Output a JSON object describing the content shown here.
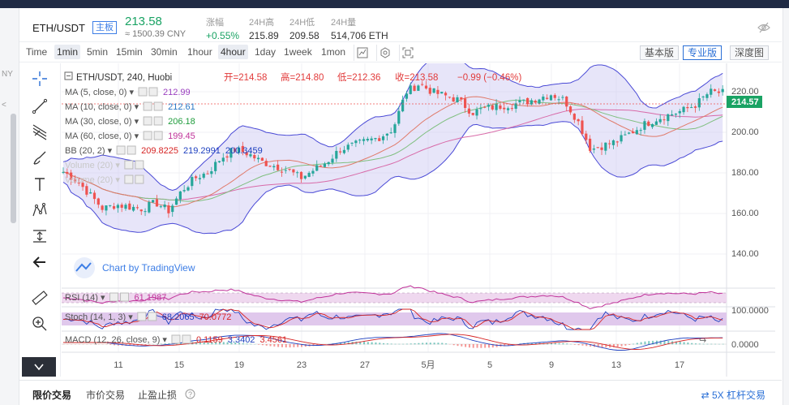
{
  "ticker": {
    "pair": "ETH/USDT",
    "board": "主板",
    "last_price": "213.58",
    "cny_price": "≈ 1500.39 CNY",
    "stats": [
      {
        "label": "涨幅",
        "value": "+0.55%",
        "up": true
      },
      {
        "label": "24H高",
        "value": "215.89",
        "up": false
      },
      {
        "label": "24H低",
        "value": "209.58",
        "up": false
      },
      {
        "label": "24H量",
        "value": "514,706 ETH",
        "up": false
      }
    ]
  },
  "left_fragments": [
    "NY",
    "<"
  ],
  "toolbar": {
    "timeframes": [
      "Time",
      "1min",
      "5min",
      "15min",
      "30min",
      "1hour",
      "4hour",
      "1day",
      "1week",
      "1mon"
    ],
    "active_timeframe": "4hour",
    "versions": [
      "基本版",
      "专业版",
      "深度图"
    ],
    "active_version": "专业版"
  },
  "chart_header": {
    "symbol": "ETH/USDT, 240, Huobi",
    "open_label": "开=214.58",
    "high_label": "高=214.80",
    "low_label": "低=212.36",
    "close_label": "收=213.58",
    "change": "−0.99 (−0.46%)"
  },
  "indicators": [
    {
      "name": "MA (5, close, 0)",
      "values": [
        "212.99"
      ],
      "colors": [
        "#9a3fbf"
      ]
    },
    {
      "name": "MA (10, close, 0)",
      "values": [
        "212.61"
      ],
      "colors": [
        "#2b78c5"
      ]
    },
    {
      "name": "MA (30, close, 0)",
      "values": [
        "206.18"
      ],
      "colors": [
        "#1f9c3c"
      ]
    },
    {
      "name": "MA (60, close, 0)",
      "values": [
        "199.45"
      ],
      "colors": [
        "#c0339a"
      ]
    },
    {
      "name": "BB (20, 2)",
      "values": [
        "209.8225",
        "219.2991",
        "200.3459"
      ],
      "colors": [
        "#d62424",
        "#1d3fbf",
        "#1d3fbf"
      ]
    },
    {
      "name": "Volume (20)",
      "values": [],
      "colors": [],
      "faded": true
    },
    {
      "name": "Volume (20)",
      "values": [],
      "colors": [],
      "faded": true
    }
  ],
  "watermark": "Chart by TradingView",
  "sub_panes": [
    {
      "name": "RSI (14)",
      "values": [
        "61.1987"
      ],
      "colors": [
        "#c0339a"
      ]
    },
    {
      "name": "Stoch (14, 1, 3)",
      "values": [
        "68.2065",
        "70.0772"
      ],
      "colors": [
        "#1d3fbf",
        "#d62424"
      ]
    },
    {
      "name": "MACD (12, 26, close, 9)",
      "values": [
        "0.1159",
        "3.3402",
        "3.4561"
      ],
      "colors": [
        "#d62424",
        "#1d3fbf",
        "#d62424"
      ]
    }
  ],
  "price_axis": [
    "220.00",
    "200.00",
    "180.00",
    "160.00",
    "140.00"
  ],
  "current_price_tag": "214.57",
  "sub_axis": [
    "100.0000",
    "0.0000"
  ],
  "time_axis": [
    "11",
    "15",
    "19",
    "23",
    "27",
    "5月",
    "5",
    "9",
    "13",
    "17"
  ],
  "bottom_tabs": [
    "限价交易",
    "市价交易",
    "止盈止损"
  ],
  "leverage": "5X 杠杆交易",
  "colors": {
    "up": "#26a69a",
    "down": "#ef5350",
    "boll_fill": "#c9c6f2",
    "accent": "#2a6fd6"
  },
  "chart_data": {
    "type": "candlestick",
    "ylim": [
      125,
      228
    ],
    "series": [
      {
        "name": "MA (5, close, 0)",
        "last": 212.99
      },
      {
        "name": "MA (10, close, 0)",
        "last": 212.61
      },
      {
        "name": "MA (30, close, 0)",
        "last": 206.18
      },
      {
        "name": "MA (60, close, 0)",
        "last": 199.45
      },
      {
        "name": "BB (20, 2) basis",
        "last": 209.8225
      },
      {
        "name": "BB (20, 2) upper",
        "last": 219.2991
      },
      {
        "name": "BB (20, 2) lower",
        "last": 200.3459
      }
    ],
    "approx_close_path": [
      175,
      171,
      164,
      157,
      159,
      158,
      157,
      160,
      156,
      166,
      172,
      175,
      182,
      186,
      184,
      180,
      178,
      176,
      172,
      176,
      180,
      186,
      188,
      190,
      192,
      196,
      214,
      218,
      214,
      212,
      210,
      204,
      206,
      207,
      208,
      209,
      211,
      213,
      210,
      200,
      186,
      188,
      190,
      194,
      198,
      201,
      203,
      205,
      208,
      214,
      213.58
    ]
  }
}
